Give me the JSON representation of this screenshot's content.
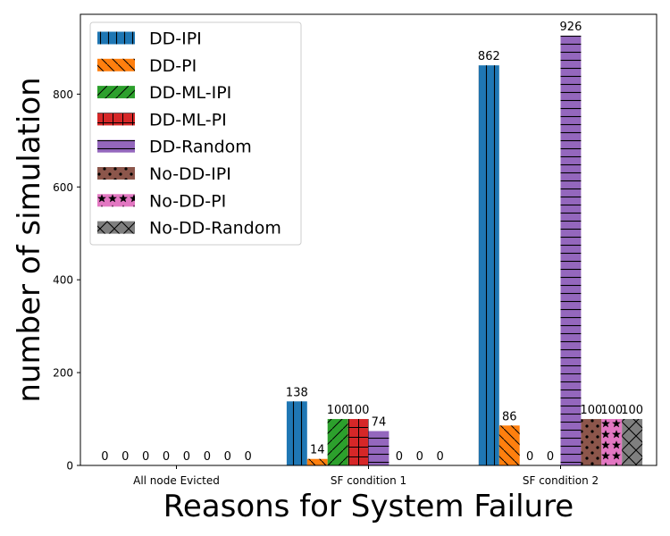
{
  "chart_data": {
    "type": "bar",
    "title": "",
    "xlabel": "Reasons for System Failure",
    "ylabel": "number of simulation",
    "categories": [
      "All node Evicted",
      "SF condition 1",
      "SF condition 2"
    ],
    "ylim": [
      0,
      972
    ],
    "yticks": [
      0,
      200,
      400,
      600,
      800
    ],
    "grid": false,
    "legend_position": "top-left",
    "series": [
      {
        "name": "DD-IPI",
        "values": [
          0,
          138,
          862
        ],
        "color": "#1f77b4",
        "hatch": "vertical-lines"
      },
      {
        "name": "DD-PI",
        "values": [
          0,
          14,
          86
        ],
        "color": "#ff7f0e",
        "hatch": "backslash"
      },
      {
        "name": "DD-ML-IPI",
        "values": [
          0,
          100,
          0
        ],
        "color": "#2ca02c",
        "hatch": "forward-slash"
      },
      {
        "name": "DD-ML-PI",
        "values": [
          0,
          100,
          0
        ],
        "color": "#d62728",
        "hatch": "plus"
      },
      {
        "name": "DD-Random",
        "values": [
          0,
          74,
          926
        ],
        "color": "#9467bd",
        "hatch": "horizontal-lines"
      },
      {
        "name": "No-DD-IPI",
        "values": [
          0,
          0,
          100
        ],
        "color": "#8c564b",
        "hatch": "dots"
      },
      {
        "name": "No-DD-PI",
        "values": [
          0,
          0,
          100
        ],
        "color": "#e377c2",
        "hatch": "stars"
      },
      {
        "name": "No-DD-Random",
        "values": [
          0,
          0,
          100
        ],
        "color": "#7f7f7f",
        "hatch": "cross"
      }
    ]
  }
}
